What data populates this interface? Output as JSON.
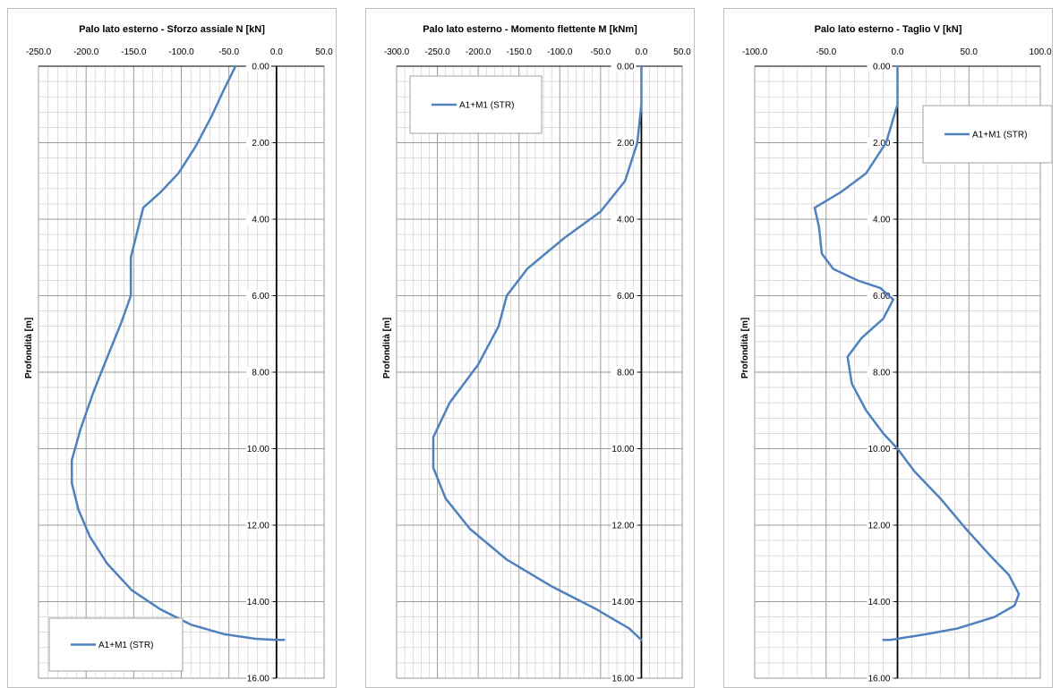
{
  "chart_data": [
    {
      "type": "line",
      "title": "Palo lato esterno - Sforzo assiale N [kN]",
      "ylabel": "Profondità [m]",
      "xlabel": "",
      "xlim": [
        -250,
        50
      ],
      "ylim": [
        0,
        16
      ],
      "y_inverted": true,
      "x_ticks": [
        "-250.0",
        "-200.0",
        "-150.0",
        "-100.0",
        "-50.0",
        "0.0",
        "50.0"
      ],
      "y_ticks": [
        "0.00",
        "2.00",
        "4.00",
        "6.00",
        "8.00",
        "10.00",
        "12.00",
        "14.00",
        "16.00"
      ],
      "grid": true,
      "legend_position": "bottom-left",
      "series": [
        {
          "name": "A1+M1 (STR)",
          "color": "#4f81bd",
          "points": [
            [
              -43,
              0
            ],
            [
              -55,
              0.6
            ],
            [
              -68,
              1.3
            ],
            [
              -85,
              2.1
            ],
            [
              -103,
              2.8
            ],
            [
              -122,
              3.3
            ],
            [
              -140,
              3.7
            ],
            [
              -146,
              4.3
            ],
            [
              -153,
              5.0
            ],
            [
              -153,
              5.6
            ],
            [
              -153,
              6.0
            ],
            [
              -163,
              6.7
            ],
            [
              -176,
              7.5
            ],
            [
              -192,
              8.5
            ],
            [
              -206,
              9.5
            ],
            [
              -215,
              10.3
            ],
            [
              -215,
              10.9
            ],
            [
              -208,
              11.6
            ],
            [
              -196,
              12.3
            ],
            [
              -178,
              13.0
            ],
            [
              -152,
              13.7
            ],
            [
              -122,
              14.2
            ],
            [
              -90,
              14.6
            ],
            [
              -55,
              14.85
            ],
            [
              -22,
              14.97
            ],
            [
              0,
              15.0
            ],
            [
              8,
              15.0
            ]
          ]
        }
      ]
    },
    {
      "type": "line",
      "title": "Palo lato esterno - Momento flettente M [kNm]",
      "ylabel": "Profondità [m]",
      "xlabel": "",
      "xlim": [
        -300,
        50
      ],
      "ylim": [
        0,
        16
      ],
      "y_inverted": true,
      "x_ticks": [
        "-300.0",
        "-250.0",
        "-200.0",
        "-150.0",
        "-100.0",
        "-50.0",
        "0.0",
        "50.0"
      ],
      "y_ticks": [
        "0.00",
        "2.00",
        "4.00",
        "6.00",
        "8.00",
        "10.00",
        "12.00",
        "14.00",
        "16.00"
      ],
      "grid": true,
      "legend_position": "top-left",
      "series": [
        {
          "name": "A1+M1 (STR)",
          "color": "#4f81bd",
          "points": [
            [
              0,
              0
            ],
            [
              0,
              1.0
            ],
            [
              -5,
              2.0
            ],
            [
              -20,
              3.0
            ],
            [
              -50,
              3.8
            ],
            [
              -95,
              4.5
            ],
            [
              -140,
              5.3
            ],
            [
              -165,
              6.0
            ],
            [
              -175,
              6.8
            ],
            [
              -200,
              7.8
            ],
            [
              -235,
              8.8
            ],
            [
              -255,
              9.7
            ],
            [
              -255,
              10.5
            ],
            [
              -240,
              11.3
            ],
            [
              -210,
              12.1
            ],
            [
              -165,
              12.9
            ],
            [
              -110,
              13.6
            ],
            [
              -55,
              14.2
            ],
            [
              -15,
              14.7
            ],
            [
              0,
              15.0
            ]
          ]
        }
      ]
    },
    {
      "type": "line",
      "title": "Palo lato esterno - Taglio V [kN]",
      "ylabel": "Profondità [m]",
      "xlabel": "",
      "xlim": [
        -100,
        100
      ],
      "ylim": [
        0,
        16
      ],
      "y_inverted": true,
      "x_ticks": [
        "-100.0",
        "-50.0",
        "0.0",
        "50.0",
        "100.0"
      ],
      "y_ticks": [
        "0.00",
        "2.00",
        "4.00",
        "6.00",
        "8.00",
        "10.00",
        "12.00",
        "14.00",
        "16.00"
      ],
      "grid": true,
      "legend_position": "top-right",
      "series": [
        {
          "name": "A1+M1 (STR)",
          "color": "#4f81bd",
          "points": [
            [
              0,
              0
            ],
            [
              0,
              1.0
            ],
            [
              -8,
              2.0
            ],
            [
              -22,
              2.8
            ],
            [
              -40,
              3.3
            ],
            [
              -58,
              3.7
            ],
            [
              -55,
              4.2
            ],
            [
              -53,
              4.9
            ],
            [
              -45,
              5.3
            ],
            [
              -28,
              5.6
            ],
            [
              -12,
              5.8
            ],
            [
              -3,
              6.1
            ],
            [
              -10,
              6.6
            ],
            [
              -25,
              7.1
            ],
            [
              -35,
              7.6
            ],
            [
              -32,
              8.3
            ],
            [
              -22,
              9.0
            ],
            [
              -10,
              9.6
            ],
            [
              0,
              10.0
            ],
            [
              12,
              10.6
            ],
            [
              30,
              11.3
            ],
            [
              48,
              12.1
            ],
            [
              65,
              12.8
            ],
            [
              78,
              13.3
            ],
            [
              85,
              13.8
            ],
            [
              82,
              14.1
            ],
            [
              68,
              14.4
            ],
            [
              42,
              14.7
            ],
            [
              20,
              14.85
            ],
            [
              -5,
              15.0
            ],
            [
              -10,
              15.0
            ]
          ]
        }
      ]
    }
  ]
}
